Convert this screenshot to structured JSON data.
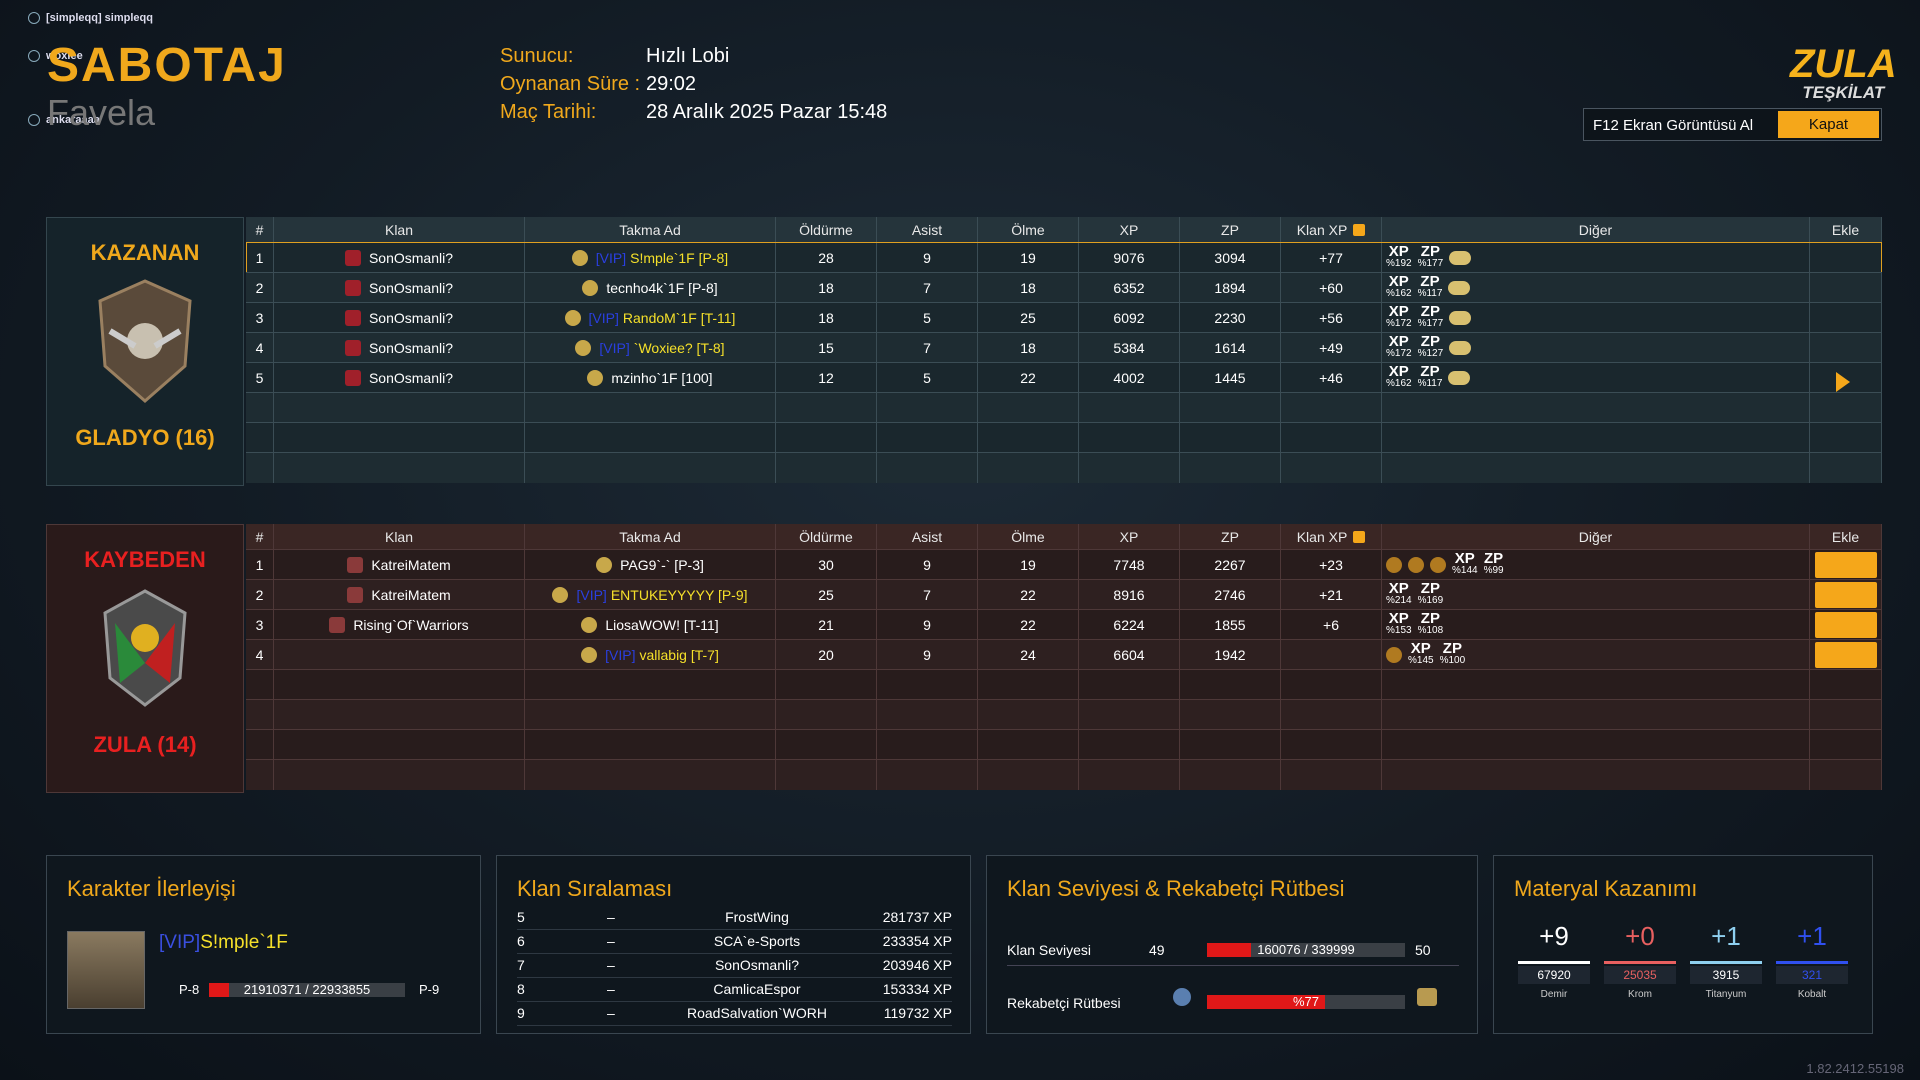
{
  "chat": [
    "[simpleqq] simpleqq",
    "woxiee",
    "ankaraaaa"
  ],
  "header": {
    "mode": "SABOTAJ",
    "map": "Favela",
    "info": [
      {
        "label": "Sunucu:",
        "value": "Hızlı Lobi"
      },
      {
        "label": "Oynanan Süre :",
        "value": "29:02"
      },
      {
        "label": "Maç Tarihi:",
        "value": "28 Aralık 2025 Pazar 15:48"
      }
    ]
  },
  "logo": {
    "line1": "ZULA",
    "line2": "TEŞKİLAT"
  },
  "buttons": {
    "screenshot": "F12 Ekran Görüntüsü Al",
    "close": "Kapat"
  },
  "columns": [
    "#",
    "Klan",
    "Takma Ad",
    "Öldürme",
    "Asist",
    "Ölme",
    "XP",
    "ZP",
    "Klan XP",
    "Diğer",
    "Ekle"
  ],
  "other_labels": [
    "XP",
    "ZP"
  ],
  "winners": {
    "label": "KAZANAN",
    "team": "GLADYO (16)",
    "rows": [
      {
        "rank": 1,
        "clan": "SonOsmanli?",
        "vip": "[VIP]",
        "name": "S!mple`1F [P-8]",
        "kills": 28,
        "assists": 9,
        "deaths": 19,
        "xp": 9076,
        "zp": 3094,
        "clan_xp": "+77",
        "other": {
          "xp": "%192",
          "zp": "%177"
        }
      },
      {
        "rank": 2,
        "clan": "SonOsmanli?",
        "name": "tecnho4k`1F [P-8]",
        "kills": 18,
        "assists": 7,
        "deaths": 18,
        "xp": 6352,
        "zp": 1894,
        "clan_xp": "+60",
        "other": {
          "xp": "%162",
          "zp": "%117"
        }
      },
      {
        "rank": 3,
        "clan": "SonOsmanli?",
        "vip": "[VIP]",
        "name": "RandoM`1F [T-11]",
        "kills": 18,
        "assists": 5,
        "deaths": 25,
        "xp": 6092,
        "zp": 2230,
        "clan_xp": "+56",
        "other": {
          "xp": "%172",
          "zp": "%177"
        }
      },
      {
        "rank": 4,
        "clan": "SonOsmanli?",
        "vip": "[VIP]",
        "name": "`Woxiee? [T-8]",
        "kills": 15,
        "assists": 7,
        "deaths": 18,
        "xp": 5384,
        "zp": 1614,
        "clan_xp": "+49",
        "other": {
          "xp": "%172",
          "zp": "%127"
        }
      },
      {
        "rank": 5,
        "clan": "SonOsmanli?",
        "name": "mzinho`1F [100]",
        "kills": 12,
        "assists": 5,
        "deaths": 22,
        "xp": 4002,
        "zp": 1445,
        "clan_xp": "+46",
        "other": {
          "xp": "%162",
          "zp": "%117"
        }
      }
    ]
  },
  "losers": {
    "label": "KAYBEDEN",
    "team": "ZULA (14)",
    "rows": [
      {
        "rank": 1,
        "clan": "KatreiMatem",
        "name": "PAG9`-` [P-3]",
        "kills": 30,
        "assists": 9,
        "deaths": 19,
        "xp": 7748,
        "zp": 2267,
        "clan_xp": "+23",
        "other": {
          "xp": "%144",
          "zp": "%99"
        }
      },
      {
        "rank": 2,
        "clan": "KatreiMatem",
        "vip": "[VIP]",
        "name": "ENTUKEYYYYY [P-9]",
        "kills": 25,
        "assists": 7,
        "deaths": 22,
        "xp": 8916,
        "zp": 2746,
        "clan_xp": "+21",
        "other": {
          "xp": "%214",
          "zp": "%169"
        }
      },
      {
        "rank": 3,
        "clan": "Rising`Of`Warriors",
        "name": "LiosaWOW! [T-11]",
        "kills": 21,
        "assists": 9,
        "deaths": 22,
        "xp": 6224,
        "zp": 1855,
        "clan_xp": "+6",
        "other": {
          "xp": "%153",
          "zp": "%108"
        }
      },
      {
        "rank": 4,
        "vip": "[VIP]",
        "name": "vallabig [T-7]",
        "kills": 20,
        "assists": 9,
        "deaths": 24,
        "xp": 6604,
        "zp": 1942,
        "other": {
          "xp": "%145",
          "zp": "%100"
        }
      }
    ]
  },
  "character": {
    "title": "Karakter İlerleyişi",
    "vip": "[VIP]",
    "name": "S!mple`1F",
    "rank_from": "P-8",
    "progress": "21910371 / 22933855",
    "rank_to": "P-9"
  },
  "clan_ranking": {
    "title": "Klan Sıralaması",
    "rows": [
      [
        "5",
        "–",
        "FrostWing",
        "281737 XP"
      ],
      [
        "6",
        "–",
        "SCA`e-Sports",
        "233354 XP"
      ],
      [
        "7",
        "–",
        "SonOsmanli?",
        "203946 XP"
      ],
      [
        "8",
        "–",
        "CamlicaEspor",
        "153334 XP"
      ],
      [
        "9",
        "–",
        "RoadSalvation`WORH",
        "119732 XP"
      ]
    ]
  },
  "clan_level": {
    "title": "Klan Seviyesi & Rekabetçi Rütbesi",
    "level_label": "Klan Seviyesi",
    "level_from": "49",
    "level_progress": "160076 / 339999",
    "level_to": "50",
    "rank_label": "Rekabetçi Rütbesi",
    "rank_progress": "%77"
  },
  "materials": {
    "title": "Materyal Kazanımı",
    "items": [
      {
        "gain": "+9",
        "total": "67920",
        "name": "Demir"
      },
      {
        "gain": "+0",
        "total": "25035",
        "name": "Krom"
      },
      {
        "gain": "+1",
        "total": "3915",
        "name": "Titanyum"
      },
      {
        "gain": "+1",
        "total": "321",
        "name": "Kobalt"
      }
    ]
  },
  "version": "1.82.2412.55198"
}
